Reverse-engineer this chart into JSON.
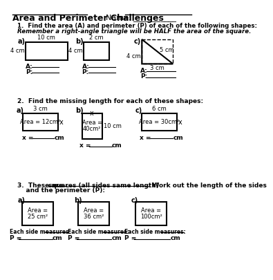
{
  "title": "Area and Perimeter Challenges",
  "name_label": "Name: ___________",
  "background": "#ffffff",
  "q1_header": "1.  Find the area (A) and perimeter (P) of each of the following shapes:",
  "q1_subheader": "Remember a right-angle triangle will be HALF the area of the square.",
  "q2_header": "2.  Find the missing length for each of these shapes:",
  "q2a_area": "Area = 12cm²",
  "q2b_area1": "Area =",
  "q2b_area2": "40cm²",
  "q2c_area": "Area = 30cm²",
  "q3a_area1": "Area =",
  "q3a_area2": "25 cm²",
  "q3b_area1": "Area =",
  "q3b_area2": "36 cm²",
  "q3c_area1": "Area =",
  "q3c_area2": "100cm²"
}
